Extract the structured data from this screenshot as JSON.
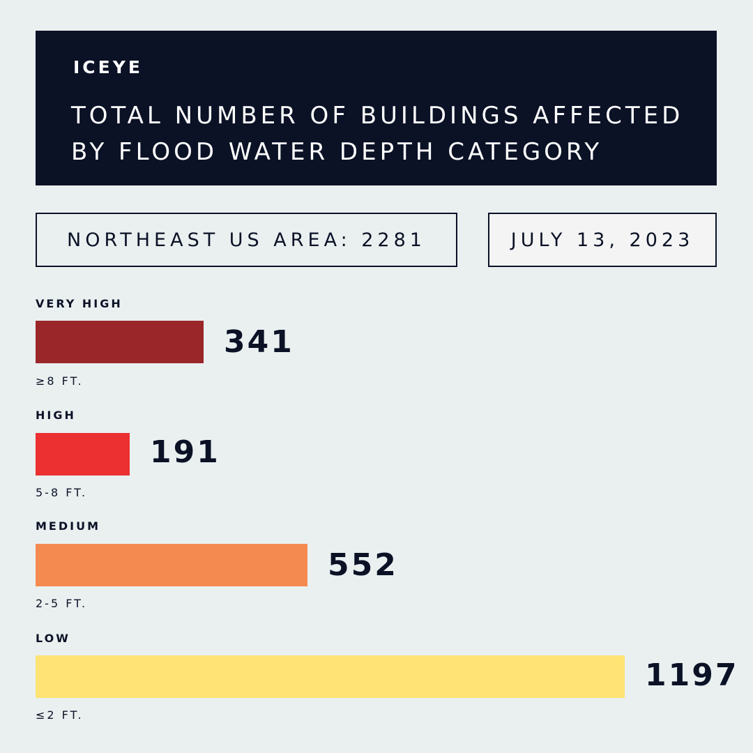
{
  "header": {
    "logo": "ICEYE",
    "title_line1": "TOTAL NUMBER OF BUILDINGS AFFECTED",
    "title_line2": "BY FLOOD WATER DEPTH CATEGORY"
  },
  "summary": {
    "area_label": "NORTHEAST US AREA: 2281",
    "date_label": "JULY 13, 2023"
  },
  "colors": {
    "header_bg": "#0B1226",
    "page_bg": "#EAF0F0",
    "very_high": "#9B262A",
    "high": "#EC2F31",
    "medium": "#F58A51",
    "low": "#FFE374"
  },
  "chart_data": {
    "type": "bar",
    "orientation": "horizontal",
    "title": "TOTAL NUMBER OF BUILDINGS AFFECTED BY FLOOD WATER DEPTH CATEGORY",
    "categories": [
      "VERY HIGH",
      "HIGH",
      "MEDIUM",
      "LOW"
    ],
    "ranges": [
      "≥8 FT.",
      "5-8 FT.",
      "2-5 FT.",
      "≤2 FT."
    ],
    "values": [
      341,
      191,
      552,
      1197
    ],
    "value_labels": [
      "341",
      "191",
      "552",
      "1197"
    ],
    "colors": [
      "#9B262A",
      "#EC2F31",
      "#F58A51",
      "#FFE374"
    ],
    "xlim": [
      0,
      1197
    ],
    "grid": false,
    "legend": "none"
  }
}
